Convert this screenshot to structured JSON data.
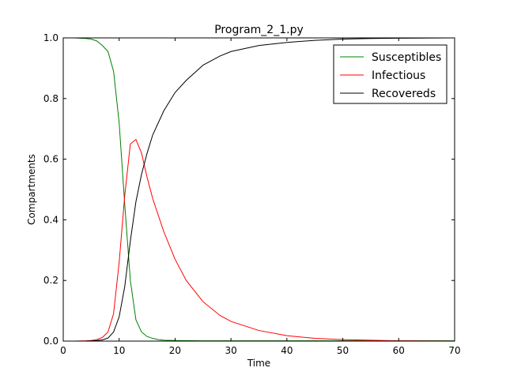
{
  "chart_data": {
    "type": "line",
    "title": "Program_2_1.py",
    "xlabel": "Time",
    "ylabel": "Compartments",
    "xlim": [
      0,
      70
    ],
    "ylim": [
      0,
      1.0
    ],
    "xticks": [
      0,
      10,
      20,
      30,
      40,
      50,
      60,
      70
    ],
    "yticks": [
      0.0,
      0.2,
      0.4,
      0.6,
      0.8,
      1.0
    ],
    "xtick_labels": [
      "0",
      "10",
      "20",
      "30",
      "40",
      "50",
      "60",
      "70"
    ],
    "ytick_labels": [
      "0.0",
      "0.2",
      "0.4",
      "0.6",
      "0.8",
      "1.0"
    ],
    "grid": false,
    "legend_position": "top-right",
    "series": [
      {
        "name": "Susceptibles",
        "color": "#008000",
        "x": [
          0,
          1,
          2,
          3,
          4,
          5,
          6,
          7,
          8,
          9,
          10,
          11,
          12,
          13,
          14,
          15,
          16,
          17,
          18,
          20,
          25,
          30,
          40,
          50,
          60,
          70
        ],
        "y": [
          1.0,
          1.0,
          1.0,
          0.999,
          0.998,
          0.996,
          0.99,
          0.975,
          0.955,
          0.89,
          0.72,
          0.45,
          0.2,
          0.07,
          0.03,
          0.015,
          0.009,
          0.005,
          0.003,
          0.002,
          0.001,
          0.001,
          0.001,
          0.001,
          0.001,
          0.001
        ]
      },
      {
        "name": "Infectious",
        "color": "#ff0000",
        "x": [
          0,
          2,
          4,
          5,
          6,
          7,
          8,
          9,
          10,
          11,
          12,
          13,
          14,
          15,
          16,
          18,
          20,
          22,
          25,
          28,
          30,
          35,
          40,
          45,
          50,
          55,
          60,
          70
        ],
        "y": [
          0.0,
          0.0,
          0.001,
          0.002,
          0.005,
          0.012,
          0.03,
          0.09,
          0.26,
          0.48,
          0.65,
          0.665,
          0.62,
          0.54,
          0.47,
          0.36,
          0.27,
          0.2,
          0.13,
          0.085,
          0.065,
          0.035,
          0.018,
          0.009,
          0.005,
          0.003,
          0.001,
          0.0
        ]
      },
      {
        "name": "Recovereds",
        "color": "#000000",
        "x": [
          0,
          4,
          6,
          7,
          8,
          9,
          10,
          11,
          12,
          13,
          14,
          15,
          16,
          18,
          20,
          22,
          25,
          28,
          30,
          35,
          40,
          45,
          50,
          55,
          60,
          70
        ],
        "y": [
          0.0,
          0.0,
          0.002,
          0.004,
          0.01,
          0.03,
          0.08,
          0.18,
          0.33,
          0.46,
          0.55,
          0.62,
          0.68,
          0.76,
          0.82,
          0.86,
          0.91,
          0.94,
          0.955,
          0.975,
          0.985,
          0.992,
          0.996,
          0.998,
          0.999,
          1.0
        ]
      }
    ]
  }
}
